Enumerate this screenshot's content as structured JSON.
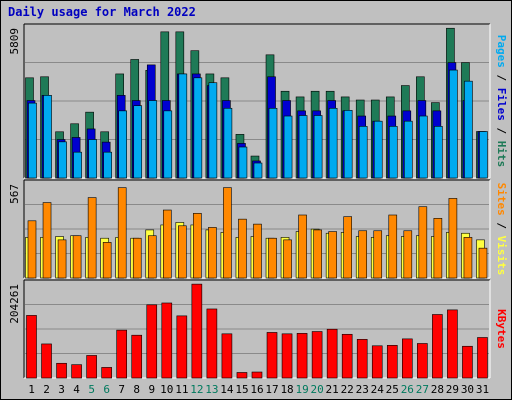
{
  "title": "Daily usage for March 2022",
  "colors": {
    "background": "#c0c0c0",
    "plot_bg": "#c0c0c0",
    "hits": "#1f7a57",
    "files": "#0000d0",
    "pages": "#00aaf0",
    "visits": "#ffff40",
    "sites": "#ff8800",
    "kbytes": "#ff0000",
    "day_black": "#000000",
    "day_weekend": "#007a5e"
  },
  "days": [
    "1",
    "2",
    "3",
    "4",
    "5",
    "6",
    "7",
    "8",
    "9",
    "10",
    "11",
    "12",
    "13",
    "14",
    "15",
    "16",
    "17",
    "18",
    "19",
    "20",
    "21",
    "22",
    "23",
    "24",
    "25",
    "26",
    "27",
    "28",
    "29",
    "30",
    "31"
  ],
  "weekend_days": [
    5,
    6,
    12,
    13,
    19,
    20,
    26,
    27
  ],
  "chart_data": [
    {
      "type": "bar",
      "name": "hits-files-pages",
      "max_label": "5809",
      "ylim": [
        0,
        5809
      ],
      "right_labels": [
        {
          "text": "Pages",
          "color": "#00aaf0"
        },
        {
          "text": " / ",
          "color": "#000000"
        },
        {
          "text": "Files",
          "color": "#0000d0"
        },
        {
          "text": " / ",
          "color": "#000000"
        },
        {
          "text": "Hits",
          "color": "#1f7a57"
        }
      ],
      "series": [
        {
          "name": "Hits",
          "values": [
            3880,
            3920,
            1790,
            2100,
            2550,
            1790,
            4030,
            4590,
            4170,
            5660,
            5660,
            4930,
            4030,
            3880,
            1690,
            850,
            4770,
            3360,
            3140,
            3360,
            3360,
            3140,
            3020,
            3020,
            3140,
            3580,
            3920,
            2920,
            5800,
            4470,
            1800
          ]
        },
        {
          "name": "Files",
          "values": [
            3000,
            3200,
            1490,
            1570,
            1900,
            1390,
            3200,
            3000,
            4380,
            3000,
            4030,
            4030,
            3580,
            3000,
            1340,
            660,
            3920,
            3000,
            2600,
            2600,
            3000,
            2600,
            2400,
            2200,
            2400,
            2600,
            3000,
            2600,
            4470,
            3000,
            1800
          ]
        },
        {
          "name": "Pages",
          "values": [
            2900,
            3200,
            1400,
            1000,
            1490,
            1000,
            2600,
            2800,
            3000,
            2600,
            4030,
            3880,
            3690,
            2700,
            1200,
            580,
            2700,
            2400,
            2420,
            2420,
            2700,
            2620,
            2000,
            2200,
            2000,
            2200,
            2400,
            2000,
            4180,
            3750,
            1800
          ]
        }
      ]
    },
    {
      "type": "bar",
      "name": "visits-sites",
      "max_label": "567",
      "ylim": [
        0,
        567
      ],
      "right_labels": [
        {
          "text": "Sites",
          "color": "#ff8800"
        },
        {
          "text": " / ",
          "color": "#000000"
        },
        {
          "text": "Visits",
          "color": "#ffff40"
        }
      ],
      "series": [
        {
          "name": "Visits",
          "values": [
            245,
            245,
            250,
            255,
            245,
            240,
            245,
            240,
            290,
            320,
            335,
            320,
            290,
            275,
            245,
            250,
            240,
            245,
            280,
            295,
            270,
            275,
            250,
            245,
            255,
            250,
            255,
            250,
            275,
            270,
            230
          ]
        },
        {
          "name": "Sites",
          "values": [
            345,
            455,
            230,
            255,
            485,
            215,
            545,
            240,
            255,
            410,
            315,
            390,
            305,
            545,
            355,
            325,
            240,
            230,
            380,
            290,
            280,
            370,
            285,
            285,
            380,
            285,
            430,
            360,
            480,
            245,
            180
          ]
        }
      ]
    },
    {
      "type": "bar",
      "name": "kbytes",
      "max_label": "204261",
      "ylim": [
        0,
        204261
      ],
      "right_labels": [
        {
          "text": "KBytes",
          "color": "#ff0000"
        }
      ],
      "series": [
        {
          "name": "KBytes",
          "values": [
            136000,
            74000,
            32000,
            29000,
            49000,
            23000,
            104000,
            93000,
            159000,
            163000,
            135000,
            204000,
            150000,
            96000,
            12000,
            13000,
            99000,
            96000,
            97000,
            101000,
            106000,
            95000,
            84000,
            70000,
            71000,
            85000,
            75000,
            138000,
            148000,
            69000,
            88000
          ]
        }
      ]
    }
  ]
}
